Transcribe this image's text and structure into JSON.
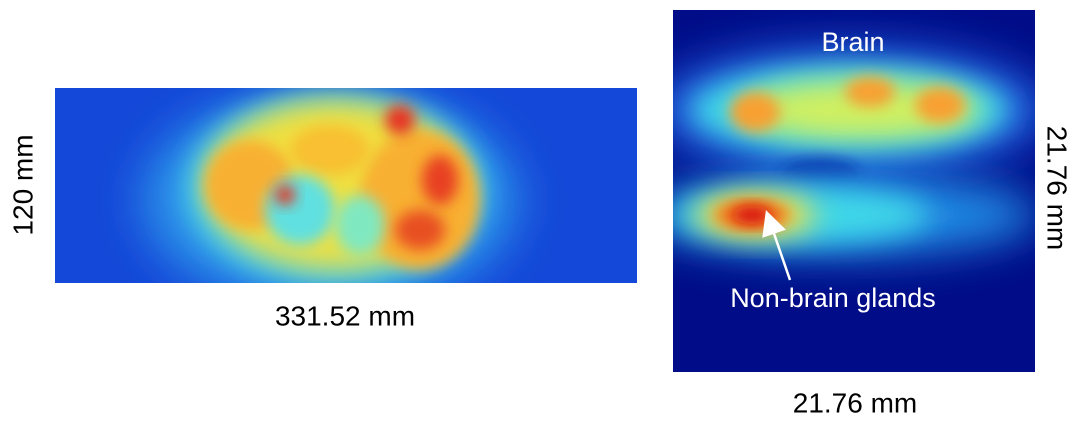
{
  "left_image": {
    "height_label": "120 mm",
    "width_label": "331.52 mm"
  },
  "right_image": {
    "height_label": "21.76 mm",
    "width_label": "21.76 mm",
    "annotations": {
      "top": "Brain",
      "arrow": "Non-brain glands"
    }
  }
}
